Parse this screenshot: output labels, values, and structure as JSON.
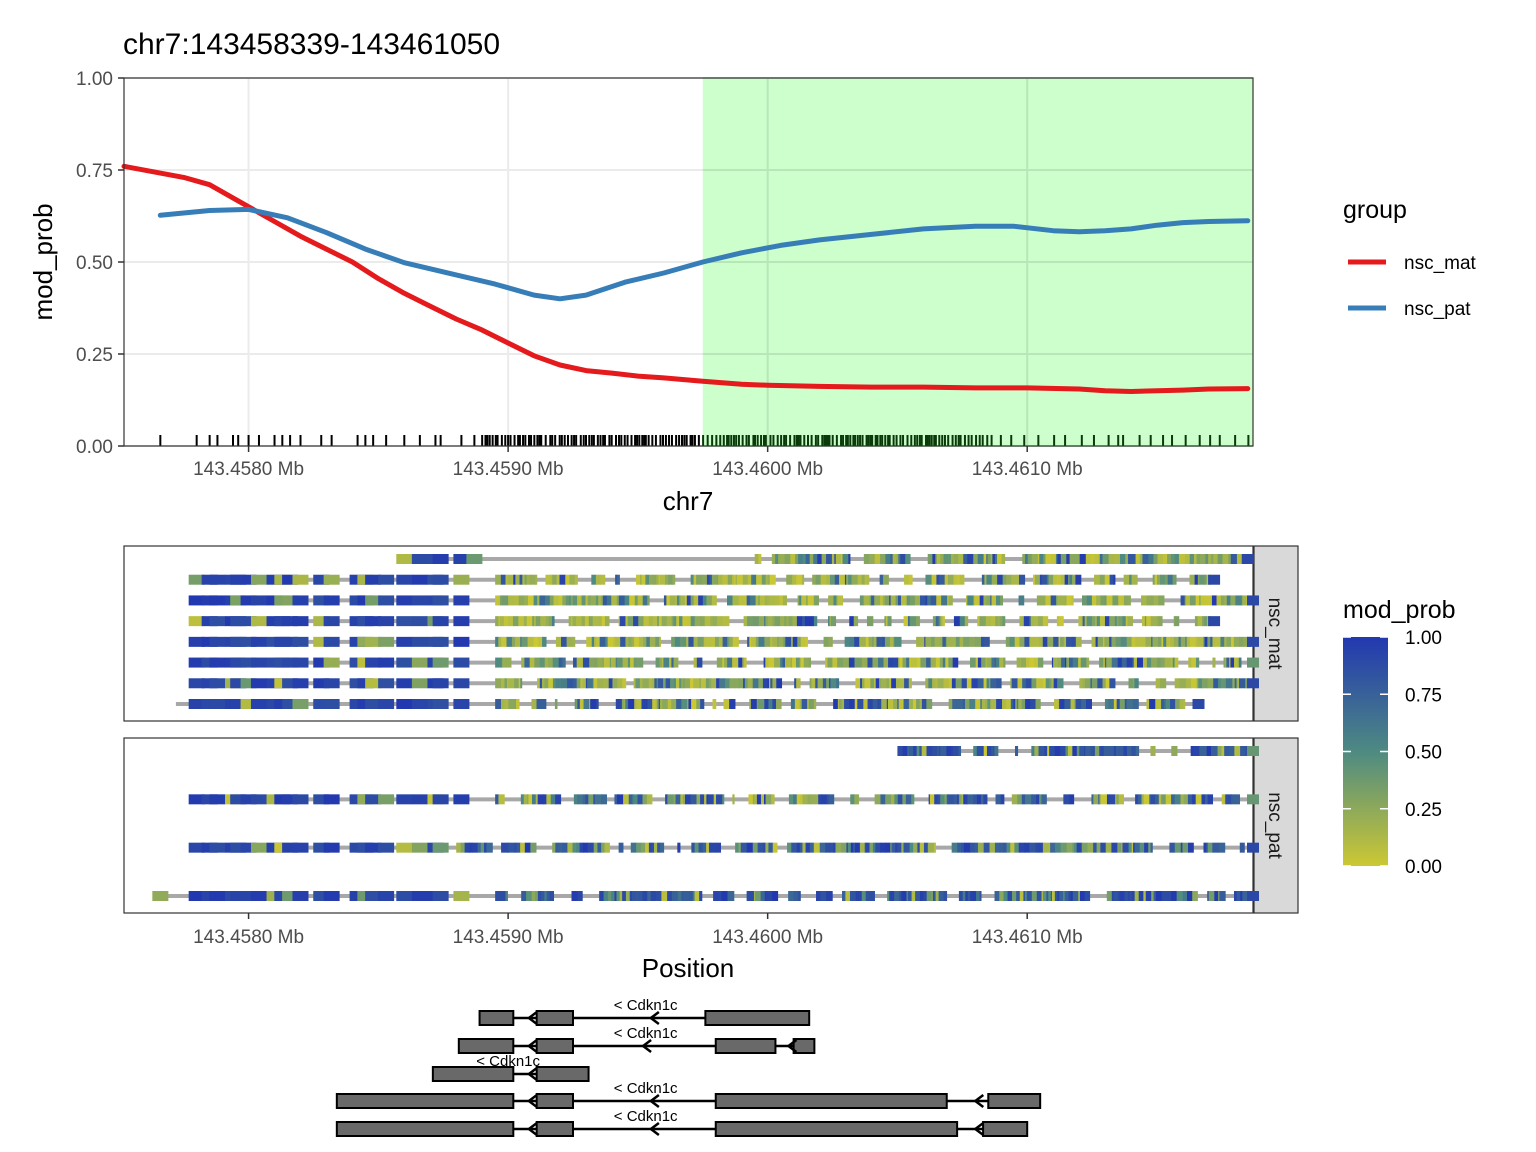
{
  "chart_data": [
    {
      "type": "line",
      "title": "chr7:143458339-143461050",
      "xlabel": "chr7",
      "ylabel": "mod_prob",
      "xlim": [
        143457.52,
        143461.87
      ],
      "ylim": [
        0,
        1
      ],
      "x_ticks": [
        {
          "value": 143458.0,
          "label": "143.4580 Mb"
        },
        {
          "value": 143459.0,
          "label": "143.4590 Mb"
        },
        {
          "value": 143460.0,
          "label": "143.4600 Mb"
        },
        {
          "value": 143461.0,
          "label": "143.4610 Mb"
        }
      ],
      "y_ticks": [
        {
          "value": 0,
          "label": "0.00"
        },
        {
          "value": 0.25,
          "label": "0.25"
        },
        {
          "value": 0.5,
          "label": "0.50"
        },
        {
          "value": 0.75,
          "label": "0.75"
        },
        {
          "value": 1,
          "label": "1.00"
        }
      ],
      "highlight_region": {
        "x_start": 143459.75,
        "x_end": 143461.87,
        "color": "#ccffcc"
      },
      "grid": true,
      "legend": {
        "title": "group",
        "placement": "right"
      },
      "series": [
        {
          "name": "nsc_mat",
          "color": "#e41a1c",
          "x": [
            143457.52,
            143457.75,
            143457.85,
            143457.95,
            143458.1,
            143458.2,
            143458.3,
            143458.4,
            143458.5,
            143458.6,
            143458.7,
            143458.8,
            143458.9,
            143459.0,
            143459.1,
            143459.2,
            143459.3,
            143459.4,
            143459.5,
            143459.6,
            143459.75,
            143459.9,
            143460.0,
            143460.2,
            143460.4,
            143460.6,
            143460.8,
            143461.0,
            143461.2,
            143461.3,
            143461.4,
            143461.5,
            143461.6,
            143461.7,
            143461.85
          ],
          "y": [
            0.76,
            0.73,
            0.71,
            0.67,
            0.61,
            0.57,
            0.535,
            0.5,
            0.455,
            0.415,
            0.38,
            0.345,
            0.315,
            0.28,
            0.245,
            0.22,
            0.205,
            0.198,
            0.19,
            0.185,
            0.176,
            0.168,
            0.165,
            0.162,
            0.16,
            0.16,
            0.158,
            0.158,
            0.155,
            0.15,
            0.148,
            0.15,
            0.152,
            0.155,
            0.156
          ]
        },
        {
          "name": "nsc_pat",
          "color": "#377eb8",
          "x": [
            143457.66,
            143457.85,
            143458.0,
            143458.15,
            143458.3,
            143458.45,
            143458.6,
            143458.8,
            143458.95,
            143459.1,
            143459.2,
            143459.3,
            143459.45,
            143459.6,
            143459.75,
            143459.9,
            143460.05,
            143460.2,
            143460.4,
            143460.6,
            143460.8,
            143460.95,
            143461.1,
            143461.2,
            143461.3,
            143461.4,
            143461.5,
            143461.6,
            143461.7,
            143461.85
          ],
          "y": [
            0.627,
            0.64,
            0.643,
            0.62,
            0.58,
            0.535,
            0.498,
            0.465,
            0.44,
            0.41,
            0.4,
            0.41,
            0.445,
            0.47,
            0.5,
            0.525,
            0.545,
            0.56,
            0.575,
            0.59,
            0.597,
            0.597,
            0.585,
            0.582,
            0.585,
            0.59,
            0.6,
            0.607,
            0.61,
            0.612
          ]
        }
      ]
    },
    {
      "type": "heatmap",
      "xlabel": "Position",
      "x_ticks": [
        {
          "value": 143458.0,
          "label": "143.4580 Mb"
        },
        {
          "value": 143459.0,
          "label": "143.4590 Mb"
        },
        {
          "value": 143460.0,
          "label": "143.4600 Mb"
        },
        {
          "value": 143461.0,
          "label": "143.4610 Mb"
        }
      ],
      "panels": [
        "nsc_mat",
        "nsc_pat"
      ],
      "reads": {
        "nsc_mat": [
          {
            "start": 143458.6,
            "end": 143461.85,
            "seed": 11,
            "bias": 0.2,
            "gap_end": 143458.94,
            "dense_start": 143459.95
          },
          {
            "start": 143457.8,
            "end": 143461.72,
            "seed": 23,
            "bias": 0.18,
            "gap_end": 143458.85,
            "dense_start": 143458.95
          },
          {
            "start": 143457.8,
            "end": 143461.87,
            "seed": 37,
            "bias": 0.15,
            "gap_end": 143458.85,
            "dense_start": 143458.95
          },
          {
            "start": 143457.8,
            "end": 143461.72,
            "seed": 41,
            "bias": 0.2,
            "gap_end": 143458.85,
            "dense_start": 143458.95
          },
          {
            "start": 143457.8,
            "end": 143461.87,
            "seed": 53,
            "bias": 0.22,
            "gap_end": 143458.85,
            "dense_start": 143458.95
          },
          {
            "start": 143457.8,
            "end": 143461.87,
            "seed": 67,
            "bias": 0.25,
            "gap_end": 143458.85,
            "dense_start": 143458.95
          },
          {
            "start": 143457.8,
            "end": 143461.87,
            "seed": 79,
            "bias": 0.3,
            "gap_end": 143458.85,
            "dense_start": 143458.95
          },
          {
            "start": 143457.72,
            "end": 143461.66,
            "seed": 83,
            "bias": 0.4,
            "gap_end": 143458.85,
            "dense_start": 143458.95
          }
        ],
        "nsc_pat": [
          {
            "start": 143460.5,
            "end": 143461.87,
            "seed": 97,
            "bias": 0.85,
            "gap_end": 143460.5,
            "dense_start": 143460.5
          },
          {
            "start": 143457.8,
            "end": 143461.87,
            "seed": 101,
            "bias": 0.55,
            "gap_end": 143458.85,
            "dense_start": 143458.95
          },
          {
            "start": 143457.8,
            "end": 143461.87,
            "seed": 113,
            "bias": 0.75,
            "gap_end": 143458.75,
            "dense_start": 143458.8
          },
          {
            "start": 143457.64,
            "end": 143461.87,
            "seed": 127,
            "bias": 0.75,
            "gap_end": 143458.85,
            "dense_start": 143458.95
          }
        ]
      },
      "colorbar": {
        "title": "mod_prob",
        "range": [
          0,
          1
        ],
        "ticks": [
          "1.00",
          "0.75",
          "0.50",
          "0.25",
          "0.00"
        ],
        "colors": [
          "#ccc833",
          "#4e8a82",
          "#2238b0"
        ]
      }
    },
    {
      "type": "gene_track",
      "transcripts": [
        {
          "label": "< Cdkn1c",
          "strand": "-",
          "line": [
            143458.89,
            143460.16
          ],
          "exons": [
            [
              143458.89,
              143459.02
            ],
            [
              143459.11,
              143459.25
            ],
            [
              143459.76,
              143460.16
            ]
          ],
          "arrows": [
            143459.08,
            143459.55
          ]
        },
        {
          "label": "< Cdkn1c",
          "strand": "-",
          "line": [
            143458.81,
            143460.18
          ],
          "exons": [
            [
              143458.81,
              143459.02
            ],
            [
              143459.11,
              143459.25
            ],
            [
              143459.8,
              143460.03
            ],
            [
              143460.1,
              143460.18
            ]
          ],
          "arrows": [
            143459.08,
            143459.52,
            143460.08
          ]
        },
        {
          "label": "< Cdkn1c",
          "strand": "-",
          "line": [
            143458.71,
            143459.31
          ],
          "exons": [
            [
              143458.71,
              143459.02
            ],
            [
              143459.11,
              143459.31
            ]
          ],
          "arrows": [
            143459.08
          ]
        },
        {
          "label": "< Cdkn1c",
          "strand": "-",
          "line": [
            143458.34,
            143461.05
          ],
          "exons": [
            [
              143458.34,
              143459.02
            ],
            [
              143459.11,
              143459.25
            ],
            [
              143459.8,
              143460.69
            ],
            [
              143460.85,
              143461.05
            ]
          ],
          "arrows": [
            143459.08,
            143459.55,
            143460.8
          ]
        },
        {
          "label": "< Cdkn1c",
          "strand": "-",
          "line": [
            143458.34,
            143461.0
          ],
          "exons": [
            [
              143458.34,
              143459.02
            ],
            [
              143459.11,
              143459.25
            ],
            [
              143459.8,
              143460.73
            ],
            [
              143460.83,
              143461.0
            ]
          ],
          "arrows": [
            143459.08,
            143459.55,
            143460.8
          ]
        }
      ]
    }
  ]
}
